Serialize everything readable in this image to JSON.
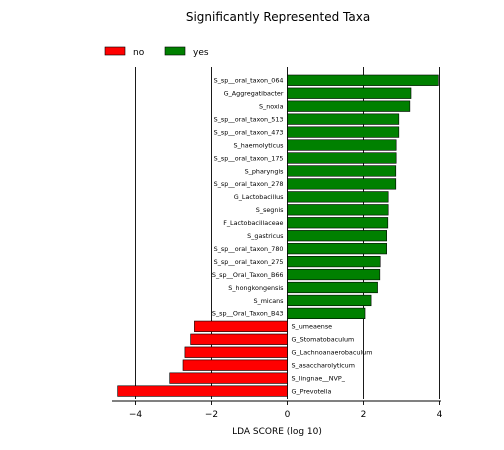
{
  "chart_data": {
    "type": "bar",
    "orientation": "horizontal",
    "title": "Significantly Represented Taxa",
    "xlabel": "LDA SCORE (log 10)",
    "ylabel": "",
    "xlim": [
      -4.7,
      4.0
    ],
    "xticks": [
      -4,
      -2,
      0,
      2,
      4
    ],
    "xtick_labels": [
      "−4",
      "−2",
      "0",
      "2",
      "4"
    ],
    "grid": "vertical lines at ticks",
    "legend_position": "top-left",
    "legend": [
      {
        "label": "no",
        "color": "#ff0000"
      },
      {
        "label": "yes",
        "color": "#008000"
      }
    ],
    "categories": [
      "S_sp__oral_taxon_064",
      "G_Aggregatibacter",
      "S_noxia",
      "S_sp__oral_taxon_513",
      "S_sp__oral_taxon_473",
      "S_haemolyticus",
      "S_sp__oral_taxon_175",
      "S_pharyngis",
      "S_sp__oral_taxon_278",
      "G_Lactobacillus",
      "S_segnis",
      "F_Lactobacillaceae",
      "S_gastricus",
      "S_sp__oral_taxon_780",
      "S_sp__oral_taxon_275",
      "S_sp__Oral_Taxon_B66",
      "S_hongkongensis",
      "S_micans",
      "S_sp__Oral_Taxon_B43",
      "S_umeaense",
      "G_Stomatobaculum",
      "G_Lachnoanaerobaculum",
      "S_asaccharolyticum",
      "S_lingnae__NVP_",
      "G_Prevotella"
    ],
    "values": [
      3.97,
      3.25,
      3.22,
      2.93,
      2.93,
      2.86,
      2.86,
      2.85,
      2.85,
      2.65,
      2.65,
      2.64,
      2.61,
      2.61,
      2.44,
      2.43,
      2.37,
      2.2,
      2.04,
      -2.45,
      -2.55,
      -2.7,
      -2.75,
      -3.1,
      -4.47
    ],
    "series": [
      {
        "name": "yes",
        "color": "#008000"
      },
      {
        "name": "no",
        "color": "#ff0000"
      }
    ]
  }
}
